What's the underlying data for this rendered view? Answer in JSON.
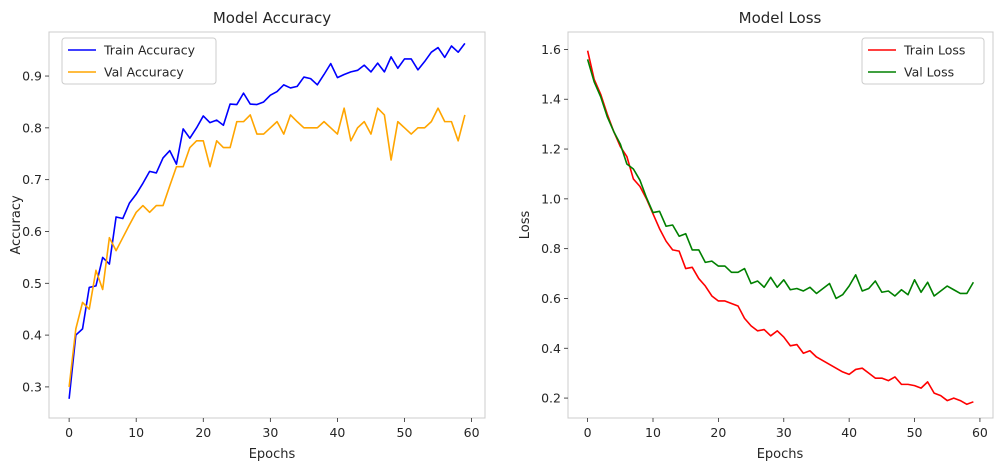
{
  "chart_data": [
    {
      "type": "line",
      "title": "Model Accuracy",
      "xlabel": "Epochs",
      "ylabel": "Accuracy",
      "xlim": [
        -3,
        62
      ],
      "ylim": [
        0.24,
        0.985
      ],
      "xticks": [
        0,
        10,
        20,
        30,
        40,
        50,
        60
      ],
      "yticks": [
        0.3,
        0.4,
        0.5,
        0.6,
        0.7,
        0.8,
        0.9
      ],
      "tick_labels_x": [
        "0",
        "10",
        "20",
        "30",
        "40",
        "50",
        "60"
      ],
      "tick_labels_y": [
        "0.3",
        "0.4",
        "0.5",
        "0.6",
        "0.7",
        "0.8",
        "0.9"
      ],
      "grid": false,
      "legend_position": "upper-left",
      "series": [
        {
          "name": "Train Accuracy",
          "color": "#0000ff",
          "values": [
            0.277,
            0.4,
            0.412,
            0.492,
            0.495,
            0.55,
            0.537,
            0.628,
            0.625,
            0.655,
            0.672,
            0.693,
            0.716,
            0.713,
            0.742,
            0.756,
            0.73,
            0.798,
            0.78,
            0.8,
            0.823,
            0.81,
            0.815,
            0.805,
            0.846,
            0.845,
            0.867,
            0.846,
            0.845,
            0.85,
            0.863,
            0.87,
            0.883,
            0.877,
            0.88,
            0.898,
            0.895,
            0.883,
            0.903,
            0.924,
            0.897,
            0.903,
            0.908,
            0.911,
            0.921,
            0.908,
            0.925,
            0.908,
            0.937,
            0.915,
            0.933,
            0.933,
            0.912,
            0.928,
            0.946,
            0.955,
            0.936,
            0.958,
            0.946,
            0.963
          ]
        },
        {
          "name": "Val Accuracy",
          "color": "#ffa500",
          "values": [
            0.3,
            0.412,
            0.463,
            0.45,
            0.525,
            0.488,
            0.588,
            0.563,
            0.588,
            0.613,
            0.637,
            0.65,
            0.637,
            0.65,
            0.65,
            0.688,
            0.725,
            0.725,
            0.762,
            0.775,
            0.775,
            0.725,
            0.775,
            0.762,
            0.762,
            0.812,
            0.812,
            0.825,
            0.788,
            0.788,
            0.8,
            0.812,
            0.788,
            0.825,
            0.812,
            0.8,
            0.8,
            0.8,
            0.812,
            0.8,
            0.788,
            0.838,
            0.775,
            0.8,
            0.812,
            0.788,
            0.838,
            0.825,
            0.738,
            0.812,
            0.8,
            0.788,
            0.8,
            0.8,
            0.812,
            0.838,
            0.812,
            0.812,
            0.775,
            0.825
          ]
        }
      ]
    },
    {
      "type": "line",
      "title": "Model Loss",
      "xlabel": "Epochs",
      "ylabel": "Loss",
      "xlim": [
        -3,
        62
      ],
      "ylim": [
        0.12,
        1.67
      ],
      "xticks": [
        0,
        10,
        20,
        30,
        40,
        50,
        60
      ],
      "yticks": [
        0.2,
        0.4,
        0.6,
        0.8,
        1.0,
        1.2,
        1.4,
        1.6
      ],
      "tick_labels_x": [
        "0",
        "10",
        "20",
        "30",
        "40",
        "50",
        "60"
      ],
      "tick_labels_y": [
        "0.2",
        "0.4",
        "0.6",
        "0.8",
        "1.0",
        "1.2",
        "1.4",
        "1.6"
      ],
      "grid": false,
      "legend_position": "upper-right",
      "series": [
        {
          "name": "Train Loss",
          "color": "#ff0000",
          "values": [
            1.595,
            1.48,
            1.42,
            1.34,
            1.27,
            1.21,
            1.17,
            1.08,
            1.05,
            1.0,
            0.94,
            0.88,
            0.83,
            0.795,
            0.79,
            0.72,
            0.725,
            0.68,
            0.65,
            0.61,
            0.59,
            0.59,
            0.58,
            0.57,
            0.52,
            0.49,
            0.47,
            0.475,
            0.45,
            0.47,
            0.445,
            0.41,
            0.415,
            0.38,
            0.39,
            0.365,
            0.35,
            0.335,
            0.32,
            0.305,
            0.295,
            0.315,
            0.32,
            0.3,
            0.28,
            0.28,
            0.27,
            0.285,
            0.255,
            0.255,
            0.25,
            0.24,
            0.265,
            0.22,
            0.21,
            0.19,
            0.2,
            0.19,
            0.175,
            0.185
          ]
        },
        {
          "name": "Val Loss",
          "color": "#008000",
          "values": [
            1.56,
            1.47,
            1.41,
            1.33,
            1.27,
            1.22,
            1.14,
            1.12,
            1.075,
            1.005,
            0.945,
            0.95,
            0.89,
            0.895,
            0.85,
            0.86,
            0.795,
            0.795,
            0.745,
            0.75,
            0.73,
            0.73,
            0.705,
            0.705,
            0.72,
            0.66,
            0.67,
            0.645,
            0.685,
            0.645,
            0.675,
            0.635,
            0.64,
            0.63,
            0.645,
            0.62,
            0.64,
            0.66,
            0.6,
            0.615,
            0.65,
            0.695,
            0.63,
            0.64,
            0.67,
            0.625,
            0.63,
            0.61,
            0.635,
            0.615,
            0.675,
            0.625,
            0.665,
            0.61,
            0.63,
            0.65,
            0.635,
            0.62,
            0.62,
            0.665
          ]
        }
      ]
    }
  ]
}
